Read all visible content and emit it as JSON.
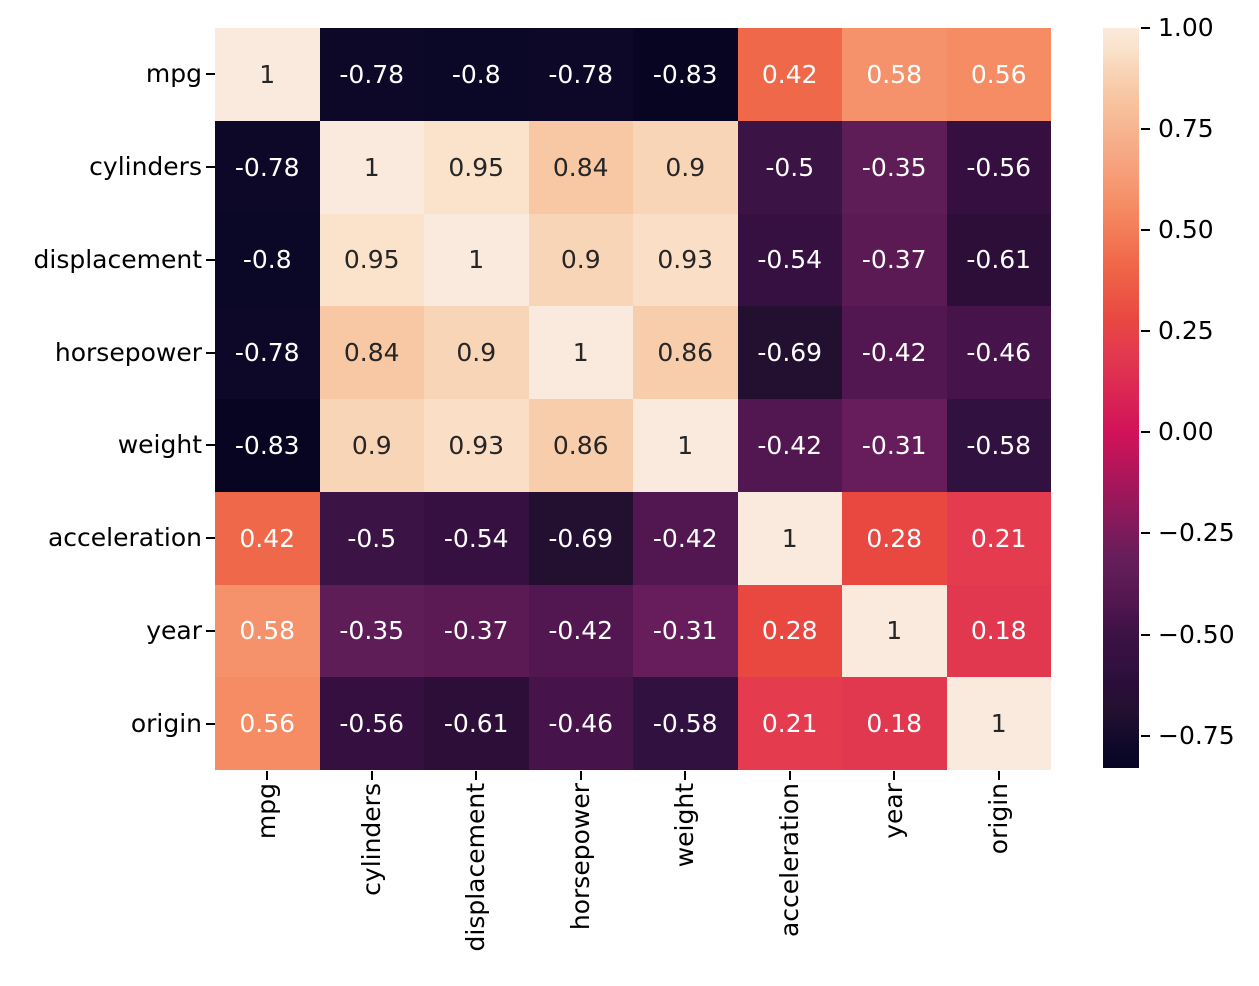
{
  "figure": {
    "background": "#ffffff"
  },
  "chart_data": {
    "type": "heatmap",
    "title": "",
    "categories": [
      "mpg",
      "cylinders",
      "displacement",
      "horsepower",
      "weight",
      "acceleration",
      "year",
      "origin"
    ],
    "x_tick_labels": [
      "mpg",
      "cylinders",
      "displacement",
      "horsepower",
      "weight",
      "acceleration",
      "year",
      "origin"
    ],
    "y_tick_labels": [
      "mpg",
      "cylinders",
      "displacement",
      "horsepower",
      "weight",
      "acceleration",
      "year",
      "origin"
    ],
    "matrix": [
      [
        1,
        -0.78,
        -0.8,
        -0.78,
        -0.83,
        0.42,
        0.58,
        0.56
      ],
      [
        -0.78,
        1,
        0.95,
        0.84,
        0.9,
        -0.5,
        -0.35,
        -0.56
      ],
      [
        -0.8,
        0.95,
        1,
        0.9,
        0.93,
        -0.54,
        -0.37,
        -0.61
      ],
      [
        -0.78,
        0.84,
        0.9,
        1,
        0.86,
        -0.69,
        -0.42,
        -0.46
      ],
      [
        -0.83,
        0.9,
        0.93,
        0.86,
        1,
        -0.42,
        -0.31,
        -0.58
      ],
      [
        0.42,
        -0.5,
        -0.54,
        -0.69,
        -0.42,
        1,
        0.28,
        0.21
      ],
      [
        0.58,
        -0.35,
        -0.37,
        -0.42,
        -0.31,
        0.28,
        1,
        0.18
      ],
      [
        0.56,
        -0.56,
        -0.61,
        -0.46,
        -0.58,
        0.21,
        0.18,
        1
      ]
    ],
    "annotations": [
      [
        "1",
        "-0.78",
        "-0.8",
        "-0.78",
        "-0.83",
        "0.42",
        "0.58",
        "0.56"
      ],
      [
        "-0.78",
        "1",
        "0.95",
        "0.84",
        "0.9",
        "-0.5",
        "-0.35",
        "-0.56"
      ],
      [
        "-0.8",
        "0.95",
        "1",
        "0.9",
        "0.93",
        "-0.54",
        "-0.37",
        "-0.61"
      ],
      [
        "-0.78",
        "0.84",
        "0.9",
        "1",
        "0.86",
        "-0.69",
        "-0.42",
        "-0.46"
      ],
      [
        "-0.83",
        "0.9",
        "0.93",
        "0.86",
        "1",
        "-0.42",
        "-0.31",
        "-0.58"
      ],
      [
        "0.42",
        "-0.5",
        "-0.54",
        "-0.69",
        "-0.42",
        "1",
        "0.28",
        "0.21"
      ],
      [
        "0.58",
        "-0.35",
        "-0.37",
        "-0.42",
        "-0.31",
        "0.28",
        "1",
        "0.18"
      ],
      [
        "0.56",
        "-0.56",
        "-0.61",
        "-0.46",
        "-0.58",
        "0.21",
        "0.18",
        "1"
      ]
    ],
    "vmin": -0.83,
    "vmax": 1.0,
    "colormap": "rocket",
    "value_colors": {
      "1": "#faeadd",
      "0.95": "#fbe2cb",
      "0.93": "#fadec6",
      "0.9": "#f9d5b8",
      "0.86": "#f8cdac",
      "0.84": "#f8c8a4",
      "0.58": "#f5916b",
      "0.56": "#f58c64",
      "0.42": "#f0684a",
      "0.28": "#e94840",
      "0.21": "#e43b4e",
      "0.18": "#e1374f",
      "-0.31": "#671d5b",
      "-0.35": "#5f1d57",
      "-0.37": "#5c1a55",
      "-0.42": "#521750",
      "-0.46": "#47134b",
      "-0.5": "#3b1345",
      "-0.54": "#371042",
      "-0.56": "#340f3f",
      "-0.58": "#311140",
      "-0.61": "#2c0e39",
      "-0.69": "#231030",
      "-0.78": "#0e0828",
      "-0.8": "#0b0726",
      "-0.83": "#070521"
    },
    "annotation_text_colors": {
      "dark": "#262626",
      "light": "#ffffff"
    },
    "axis": {
      "tick_color": "#000000",
      "label_color": "#000000"
    },
    "legend_position": "right",
    "grid": false,
    "colorbar": {
      "ticks": [
        {
          "value": 1.0,
          "label": "1.00"
        },
        {
          "value": 0.75,
          "label": "0.75"
        },
        {
          "value": 0.5,
          "label": "0.50"
        },
        {
          "value": 0.25,
          "label": "0.25"
        },
        {
          "value": 0.0,
          "label": "0.00"
        },
        {
          "value": -0.25,
          "label": "−0.25"
        },
        {
          "value": -0.5,
          "label": "−0.50"
        },
        {
          "value": -0.75,
          "label": "−0.75"
        }
      ],
      "gradient_extra_stops": [
        {
          "value": 0.0,
          "color": "#d2125a"
        }
      ]
    }
  }
}
